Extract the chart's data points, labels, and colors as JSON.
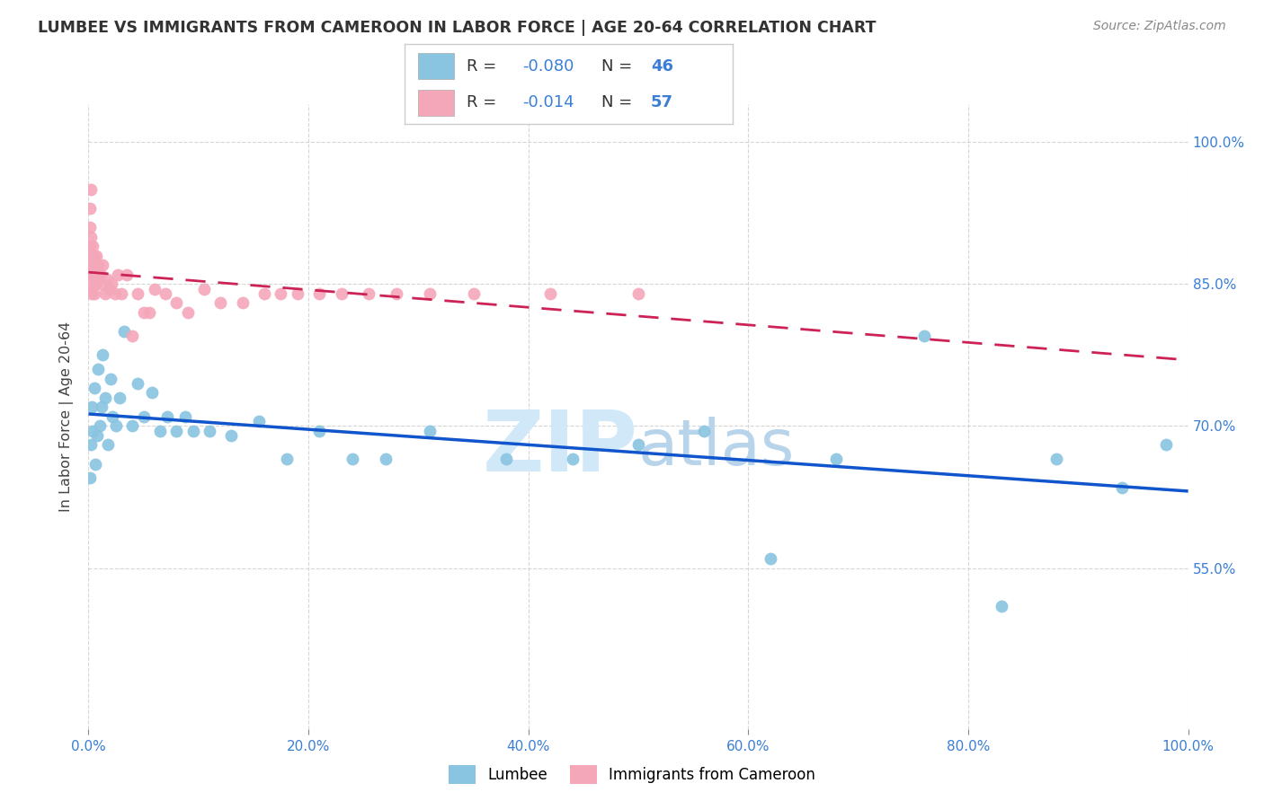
{
  "title": "LUMBEE VS IMMIGRANTS FROM CAMEROON IN LABOR FORCE | AGE 20-64 CORRELATION CHART",
  "source": "Source: ZipAtlas.com",
  "ylabel": "In Labor Force | Age 20-64",
  "lumbee_R": -0.08,
  "lumbee_N": 46,
  "cameroon_R": -0.014,
  "cameroon_N": 57,
  "lumbee_color": "#89c4e1",
  "cameroon_color": "#f4a7b9",
  "lumbee_line_color": "#1155cc",
  "cameroon_line_color": "#cc2255",
  "background_color": "#ffffff",
  "grid_color": "#cccccc",
  "watermark_color": "#d0e8f8",
  "xlim": [
    0.0,
    1.0
  ],
  "ylim": [
    0.38,
    1.04
  ],
  "yticks": [
    0.55,
    0.7,
    0.85,
    1.0
  ],
  "xticks": [
    0.0,
    0.2,
    0.4,
    0.6,
    0.8,
    1.0
  ],
  "lumbee_x": [
    0.001,
    0.002,
    0.003,
    0.004,
    0.005,
    0.006,
    0.008,
    0.009,
    0.01,
    0.012,
    0.013,
    0.015,
    0.018,
    0.02,
    0.022,
    0.025,
    0.028,
    0.032,
    0.04,
    0.045,
    0.05,
    0.058,
    0.065,
    0.072,
    0.08,
    0.088,
    0.095,
    0.11,
    0.13,
    0.155,
    0.18,
    0.21,
    0.24,
    0.27,
    0.31,
    0.38,
    0.44,
    0.5,
    0.56,
    0.62,
    0.68,
    0.76,
    0.83,
    0.88,
    0.94,
    0.98
  ],
  "lumbee_y": [
    0.645,
    0.68,
    0.72,
    0.695,
    0.74,
    0.66,
    0.69,
    0.76,
    0.7,
    0.72,
    0.775,
    0.73,
    0.68,
    0.75,
    0.71,
    0.7,
    0.73,
    0.8,
    0.7,
    0.745,
    0.71,
    0.735,
    0.695,
    0.71,
    0.695,
    0.71,
    0.695,
    0.695,
    0.69,
    0.705,
    0.665,
    0.695,
    0.665,
    0.665,
    0.695,
    0.665,
    0.665,
    0.68,
    0.695,
    0.56,
    0.665,
    0.795,
    0.51,
    0.665,
    0.635,
    0.68
  ],
  "cameroon_x": [
    0.001,
    0.001,
    0.001,
    0.001,
    0.001,
    0.002,
    0.002,
    0.002,
    0.002,
    0.003,
    0.003,
    0.003,
    0.004,
    0.004,
    0.005,
    0.005,
    0.005,
    0.006,
    0.006,
    0.007,
    0.007,
    0.008,
    0.009,
    0.01,
    0.011,
    0.012,
    0.013,
    0.015,
    0.017,
    0.019,
    0.021,
    0.024,
    0.027,
    0.03,
    0.035,
    0.04,
    0.045,
    0.05,
    0.055,
    0.06,
    0.07,
    0.08,
    0.09,
    0.105,
    0.12,
    0.14,
    0.16,
    0.175,
    0.19,
    0.21,
    0.23,
    0.255,
    0.28,
    0.31,
    0.35,
    0.42,
    0.5
  ],
  "cameroon_y": [
    0.93,
    0.91,
    0.88,
    0.86,
    0.89,
    0.95,
    0.9,
    0.88,
    0.85,
    0.87,
    0.84,
    0.88,
    0.87,
    0.89,
    0.88,
    0.86,
    0.84,
    0.87,
    0.85,
    0.88,
    0.86,
    0.87,
    0.87,
    0.86,
    0.86,
    0.85,
    0.87,
    0.84,
    0.855,
    0.845,
    0.85,
    0.84,
    0.86,
    0.84,
    0.86,
    0.795,
    0.84,
    0.82,
    0.82,
    0.845,
    0.84,
    0.83,
    0.82,
    0.845,
    0.83,
    0.83,
    0.84,
    0.84,
    0.84,
    0.84,
    0.84,
    0.84,
    0.84,
    0.84,
    0.84,
    0.84,
    0.84
  ]
}
